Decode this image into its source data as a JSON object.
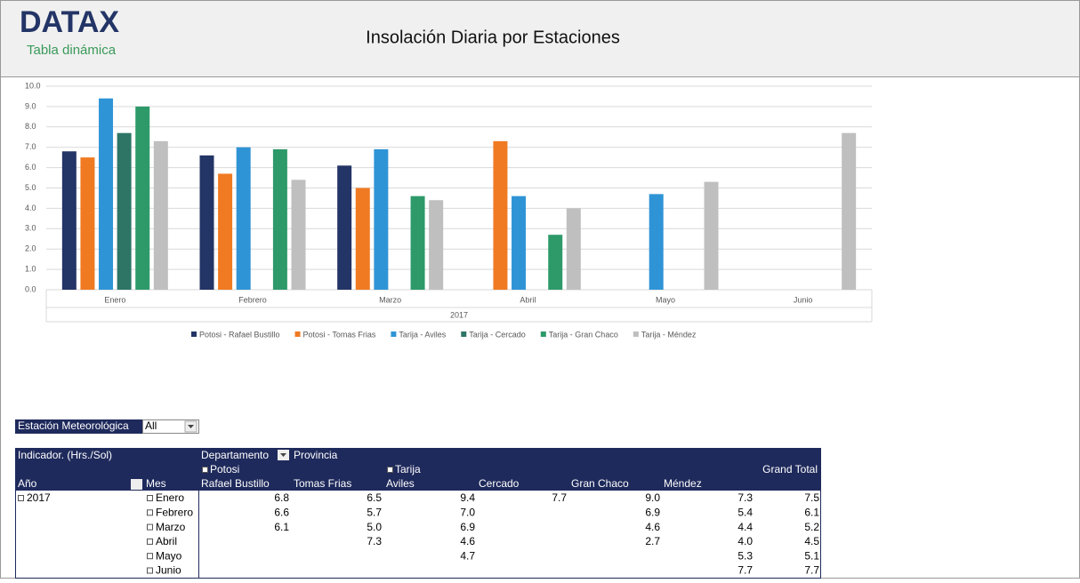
{
  "header": {
    "logo": "DATAX",
    "subtitle": "Tabla dinámica",
    "title": "Insolación Diaria por Estaciones"
  },
  "chart_data": {
    "type": "bar",
    "categories": [
      "Enero",
      "Febrero",
      "Marzo",
      "Abril",
      "Mayo",
      "Junio"
    ],
    "xlabel": "2017",
    "series": [
      {
        "name": "Potosi - Rafael Bustillo",
        "color": "#233466",
        "values": [
          6.8,
          6.6,
          6.1,
          null,
          null,
          null
        ]
      },
      {
        "name": "Potosi - Tomas Frias",
        "color": "#f07a22",
        "values": [
          6.5,
          5.7,
          5.0,
          7.3,
          null,
          null
        ]
      },
      {
        "name": "Tarija - Aviles",
        "color": "#2f94d6",
        "values": [
          9.4,
          7.0,
          6.9,
          4.6,
          4.7,
          null
        ]
      },
      {
        "name": "Tarija - Cercado",
        "color": "#2e7566",
        "values": [
          7.7,
          null,
          null,
          null,
          null,
          null
        ]
      },
      {
        "name": "Tarija - Gran Chaco",
        "color": "#2e9a6a",
        "values": [
          9.0,
          6.9,
          4.6,
          2.7,
          null,
          null
        ]
      },
      {
        "name": "Tarija - Méndez",
        "color": "#bfbfbf",
        "values": [
          7.3,
          5.4,
          4.4,
          4.0,
          5.3,
          7.7
        ]
      }
    ],
    "ylim": [
      0,
      10
    ],
    "yticks": [
      {
        "value": 0,
        "label": "0.0"
      },
      {
        "value": 1,
        "label": "1.0"
      },
      {
        "value": 2,
        "label": "2.0"
      },
      {
        "value": 3,
        "label": "3.0"
      },
      {
        "value": 4,
        "label": "4.0"
      },
      {
        "value": 5,
        "label": "5.0"
      },
      {
        "value": 6,
        "label": "6.0"
      },
      {
        "value": 7,
        "label": "7.0"
      },
      {
        "value": 8,
        "label": "8.0"
      },
      {
        "value": 9,
        "label": "9.0"
      },
      {
        "value": 10,
        "label": "10.0"
      }
    ],
    "grid": true,
    "legend": "bottom"
  },
  "filter": {
    "label": "Estación Meteorológica",
    "value": "All"
  },
  "pivot": {
    "indicator": "Indicador. (Hrs./Sol)",
    "col_fields": [
      "Departamento",
      "Provincia"
    ],
    "departments": [
      "Potosi",
      "Tarija"
    ],
    "grand_total": "Grand Total",
    "row_fields": [
      "Año",
      "Mes"
    ],
    "provinces": [
      "Rafael Bustillo",
      "Tomas Frias",
      "Aviles",
      "Cercado",
      "Gran Chaco",
      "Méndez"
    ],
    "year": "2017",
    "rows": [
      {
        "month": "Enero",
        "cells": [
          "6.8",
          "6.5",
          "9.4",
          "7.7",
          "9.0",
          "7.3",
          "7.5"
        ]
      },
      {
        "month": "Febrero",
        "cells": [
          "6.6",
          "5.7",
          "7.0",
          null,
          "6.9",
          "5.4",
          "6.1"
        ]
      },
      {
        "month": "Marzo",
        "cells": [
          "6.1",
          "5.0",
          "6.9",
          null,
          "4.6",
          "4.4",
          "5.2"
        ]
      },
      {
        "month": "Abril",
        "cells": [
          null,
          "7.3",
          "4.6",
          null,
          "2.7",
          "4.0",
          "4.5"
        ]
      },
      {
        "month": "Mayo",
        "cells": [
          null,
          null,
          "4.7",
          null,
          null,
          "5.3",
          "5.1"
        ]
      },
      {
        "month": "Junio",
        "cells": [
          null,
          null,
          null,
          null,
          null,
          "7.7",
          "7.7"
        ]
      }
    ]
  }
}
